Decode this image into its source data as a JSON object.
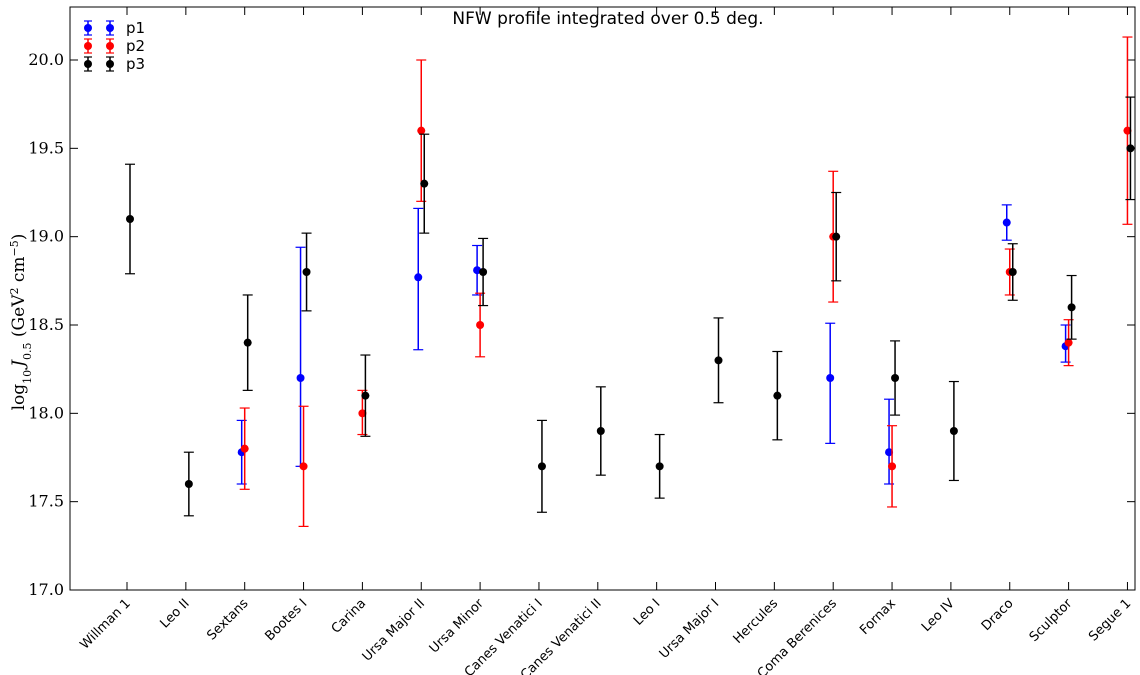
{
  "chart_data": {
    "type": "scatter",
    "title": "NFW profile integrated over 0.5 deg.",
    "ylabel_parts": {
      "log": "log",
      "log_sub": "10",
      "J": "J",
      "J_sub": "0.5",
      "unit_open": " (GeV",
      "sq": "2",
      "cm": " cm",
      "exp": "−5",
      "close": ")"
    },
    "xlabel": "",
    "ylim": [
      17.0,
      20.3
    ],
    "yticks": [
      17.0,
      17.5,
      18.0,
      18.5,
      19.0,
      19.5,
      20.0
    ],
    "ytick_labels": [
      "17.0",
      "17.5",
      "18.0",
      "18.5",
      "19.0",
      "19.5",
      "20.0"
    ],
    "categories": [
      "Willman 1",
      "Leo II",
      "Sextans",
      "Bootes I",
      "Carina",
      "Ursa Major II",
      "Ursa Minor",
      "Canes Venatici I",
      "Canes Venatici II",
      "Leo I",
      "Ursa Major I",
      "Hercules",
      "Coma Berenices",
      "Fornax",
      "Leo IV",
      "Draco",
      "Sculptor",
      "Segue 1"
    ],
    "legend_position": "top-left",
    "grid": false,
    "series": [
      {
        "name": "p1",
        "color": "#0000ff",
        "points": [
          {
            "cat": 2,
            "y": 17.78,
            "lo": 17.6,
            "hi": 17.96
          },
          {
            "cat": 3,
            "y": 18.2,
            "lo": 17.7,
            "hi": 18.94
          },
          {
            "cat": 5,
            "y": 18.77,
            "lo": 18.36,
            "hi": 19.16
          },
          {
            "cat": 6,
            "y": 18.81,
            "lo": 18.67,
            "hi": 18.95
          },
          {
            "cat": 12,
            "y": 18.2,
            "lo": 17.83,
            "hi": 18.51
          },
          {
            "cat": 13,
            "y": 17.78,
            "lo": 17.6,
            "hi": 18.08
          },
          {
            "cat": 15,
            "y": 19.08,
            "lo": 18.98,
            "hi": 19.18
          },
          {
            "cat": 16,
            "y": 18.38,
            "lo": 18.29,
            "hi": 18.5
          }
        ]
      },
      {
        "name": "p2",
        "color": "#ff0000",
        "points": [
          {
            "cat": 2,
            "y": 17.8,
            "lo": 17.57,
            "hi": 18.03
          },
          {
            "cat": 3,
            "y": 17.7,
            "lo": 17.36,
            "hi": 18.04
          },
          {
            "cat": 4,
            "y": 18.0,
            "lo": 17.88,
            "hi": 18.13
          },
          {
            "cat": 5,
            "y": 19.6,
            "lo": 19.2,
            "hi": 20.0
          },
          {
            "cat": 6,
            "y": 18.5,
            "lo": 18.32,
            "hi": 18.68
          },
          {
            "cat": 12,
            "y": 19.0,
            "lo": 18.63,
            "hi": 19.37
          },
          {
            "cat": 13,
            "y": 17.7,
            "lo": 17.47,
            "hi": 17.93
          },
          {
            "cat": 15,
            "y": 18.8,
            "lo": 18.67,
            "hi": 18.93
          },
          {
            "cat": 16,
            "y": 18.4,
            "lo": 18.27,
            "hi": 18.53
          },
          {
            "cat": 17,
            "y": 19.6,
            "lo": 19.07,
            "hi": 20.13
          }
        ]
      },
      {
        "name": "p3",
        "color": "#000000",
        "points": [
          {
            "cat": 0,
            "y": 19.1,
            "lo": 18.79,
            "hi": 19.41
          },
          {
            "cat": 1,
            "y": 17.6,
            "lo": 17.42,
            "hi": 17.78
          },
          {
            "cat": 2,
            "y": 18.4,
            "lo": 18.13,
            "hi": 18.67
          },
          {
            "cat": 3,
            "y": 18.8,
            "lo": 18.58,
            "hi": 19.02
          },
          {
            "cat": 4,
            "y": 18.1,
            "lo": 17.87,
            "hi": 18.33
          },
          {
            "cat": 5,
            "y": 19.3,
            "lo": 19.02,
            "hi": 19.58
          },
          {
            "cat": 6,
            "y": 18.8,
            "lo": 18.61,
            "hi": 18.99
          },
          {
            "cat": 7,
            "y": 17.7,
            "lo": 17.44,
            "hi": 17.96
          },
          {
            "cat": 8,
            "y": 17.9,
            "lo": 17.65,
            "hi": 18.15
          },
          {
            "cat": 9,
            "y": 17.7,
            "lo": 17.52,
            "hi": 17.88
          },
          {
            "cat": 10,
            "y": 18.3,
            "lo": 18.06,
            "hi": 18.54
          },
          {
            "cat": 11,
            "y": 18.1,
            "lo": 17.85,
            "hi": 18.35
          },
          {
            "cat": 12,
            "y": 19.0,
            "lo": 18.75,
            "hi": 19.25
          },
          {
            "cat": 13,
            "y": 18.2,
            "lo": 17.99,
            "hi": 18.41
          },
          {
            "cat": 14,
            "y": 17.9,
            "lo": 17.62,
            "hi": 18.18
          },
          {
            "cat": 15,
            "y": 18.8,
            "lo": 18.64,
            "hi": 18.96
          },
          {
            "cat": 16,
            "y": 18.6,
            "lo": 18.42,
            "hi": 18.78
          },
          {
            "cat": 17,
            "y": 19.5,
            "lo": 19.21,
            "hi": 19.79
          }
        ]
      }
    ]
  }
}
